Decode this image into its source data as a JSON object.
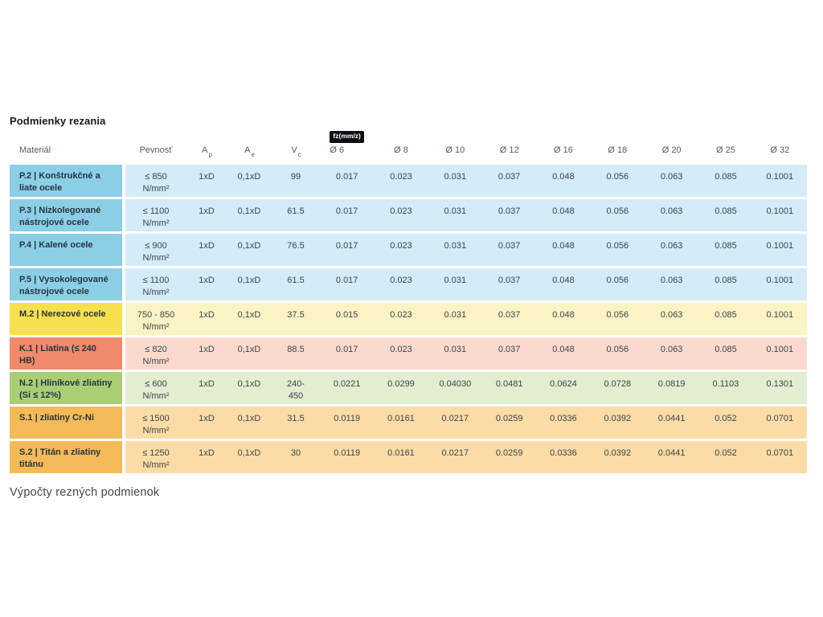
{
  "page": {
    "title": "Podmienky rezania",
    "footer_text": "Výpočty rezných podmienok"
  },
  "table": {
    "headers": {
      "material": "Materiál",
      "pevnost": "Pevnosť",
      "ap_base": "A",
      "ap_sub": "p",
      "ae_base": "A",
      "ae_sub": "e",
      "vc_base": "V",
      "vc_sub": "c",
      "fz_badge": "fz(mm/z)",
      "diameters": [
        "Ø 6",
        "Ø 8",
        "Ø 10",
        "Ø 12",
        "Ø 16",
        "Ø 18",
        "Ø 20",
        "Ø 25",
        "Ø 32"
      ]
    },
    "themes": {
      "blue": {
        "head": "#8bcfe7",
        "body": "#d3ecf7"
      },
      "yellow": {
        "head": "#f7e04d",
        "body": "#fcf3c4"
      },
      "red": {
        "head": "#ef8a6b",
        "body": "#fbdacd"
      },
      "green": {
        "head": "#a9ce74",
        "body": "#e2eed0"
      },
      "orange": {
        "head": "#f4ba58",
        "body": "#fbdca6"
      }
    },
    "rows": [
      {
        "material": "P.2 | Konštrukčné a liate ocele",
        "pevnost": "≤ 850",
        "pevnost_unit": "N/mm²",
        "ap": "1xD",
        "ae": "0,1xD",
        "vc": "99",
        "vc2": "",
        "theme": "blue",
        "fz": [
          "0.017",
          "0.023",
          "0.031",
          "0.037",
          "0.048",
          "0.056",
          "0.063",
          "0.085",
          "0.1001"
        ]
      },
      {
        "material": "P.3 | Nízkolegované nástrojové ocele",
        "pevnost": "≤ 1100",
        "pevnost_unit": "N/mm²",
        "ap": "1xD",
        "ae": "0,1xD",
        "vc": "61.5",
        "vc2": "",
        "theme": "blue",
        "fz": [
          "0.017",
          "0.023",
          "0.031",
          "0.037",
          "0.048",
          "0.056",
          "0.063",
          "0.085",
          "0.1001"
        ]
      },
      {
        "material": "P.4 | Kalené ocele",
        "pevnost": "≤ 900",
        "pevnost_unit": "N/mm²",
        "ap": "1xD",
        "ae": "0,1xD",
        "vc": "76.5",
        "vc2": "",
        "theme": "blue",
        "fz": [
          "0.017",
          "0.023",
          "0.031",
          "0.037",
          "0.048",
          "0.056",
          "0.063",
          "0.085",
          "0.1001"
        ]
      },
      {
        "material": "P.5 | Vysokolegované nástrojové ocele",
        "pevnost": "≤ 1100",
        "pevnost_unit": "N/mm²",
        "ap": "1xD",
        "ae": "0,1xD",
        "vc": "61.5",
        "vc2": "",
        "theme": "blue",
        "fz": [
          "0.017",
          "0.023",
          "0.031",
          "0.037",
          "0.048",
          "0.056",
          "0.063",
          "0.085",
          "0.1001"
        ]
      },
      {
        "material": "M.2 | Nerezové ocele",
        "pevnost": "750 - 850",
        "pevnost_unit": "N/mm²",
        "ap": "1xD",
        "ae": "0,1xD",
        "vc": "37.5",
        "vc2": "",
        "theme": "yellow",
        "fz": [
          "0.015",
          "0.023",
          "0.031",
          "0.037",
          "0.048",
          "0.056",
          "0.063",
          "0.085",
          "0.1001"
        ]
      },
      {
        "material": "K.1 | Liatina (≤ 240 HB)",
        "pevnost": "≤ 820",
        "pevnost_unit": "N/mm²",
        "ap": "1xD",
        "ae": "0,1xD",
        "vc": "88.5",
        "vc2": "",
        "theme": "red",
        "fz": [
          "0.017",
          "0.023",
          "0.031",
          "0.037",
          "0.048",
          "0.056",
          "0.063",
          "0.085",
          "0.1001"
        ]
      },
      {
        "material": "N.2 | Hliníkové zliatiny (Si ≤ 12%)",
        "pevnost": "≤ 600",
        "pevnost_unit": "N/mm²",
        "ap": "1xD",
        "ae": "0,1xD",
        "vc": "240-",
        "vc2": "450",
        "theme": "green",
        "fz": [
          "0.0221",
          "0.0299",
          "0.04030",
          "0.0481",
          "0.0624",
          "0.0728",
          "0.0819",
          "0.1103",
          "0.1301"
        ]
      },
      {
        "material": "S.1 | zliatiny Cr-Ni",
        "pevnost": "≤ 1500",
        "pevnost_unit": "N/mm²",
        "ap": "1xD",
        "ae": "0,1xD",
        "vc": "31.5",
        "vc2": "",
        "theme": "orange",
        "fz": [
          "0.0119",
          "0.0161",
          "0.0217",
          "0.0259",
          "0.0336",
          "0.0392",
          "0.0441",
          "0.052",
          "0.0701"
        ]
      },
      {
        "material": "S.2 | Titán a zliatiny titánu",
        "pevnost": "≤ 1250",
        "pevnost_unit": "N/mm²",
        "ap": "1xD",
        "ae": "0,1xD",
        "vc": "30",
        "vc2": "",
        "theme": "orange",
        "fz": [
          "0.0119",
          "0.0161",
          "0.0217",
          "0.0259",
          "0.0336",
          "0.0392",
          "0.0441",
          "0.052",
          "0.0701"
        ]
      }
    ]
  }
}
